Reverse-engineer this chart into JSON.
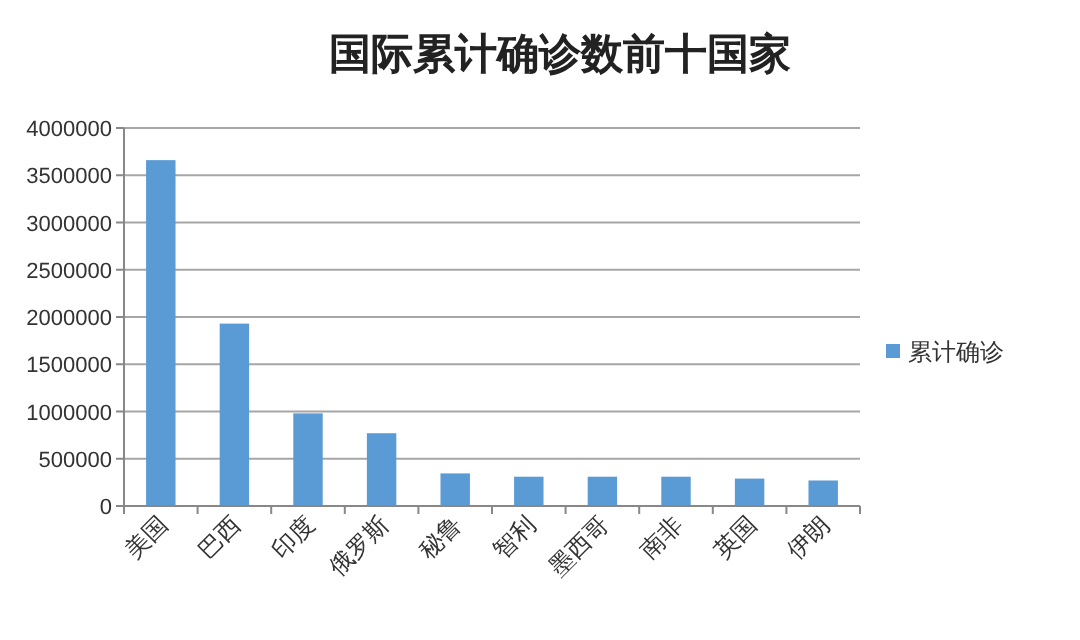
{
  "chart_data": {
    "type": "bar",
    "title": "国际累计确诊数前十国家",
    "categories": [
      "美国",
      "巴西",
      "印度",
      "俄罗斯",
      "秘鲁",
      "智利",
      "墨西哥",
      "南非",
      "英国",
      "伊朗"
    ],
    "series": [
      {
        "name": "累计确诊",
        "color": "#5b9bd5",
        "values": [
          3660000,
          1930000,
          980000,
          770000,
          345000,
          310000,
          310000,
          310000,
          290000,
          270000
        ]
      }
    ],
    "ylim": [
      0,
      4000000
    ],
    "yticks": [
      0,
      500000,
      1000000,
      1500000,
      2000000,
      2500000,
      3000000,
      3500000,
      4000000
    ],
    "grid": "y",
    "legend": "right"
  }
}
